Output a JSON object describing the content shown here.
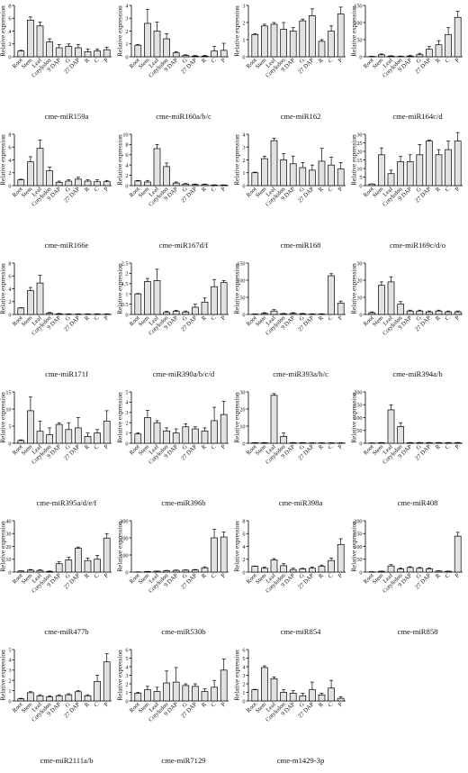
{
  "figure": {
    "categories": [
      "Root",
      "Stem",
      "Leaf",
      "Cotyledon",
      "9 DAP",
      "G",
      "27 DAP",
      "R",
      "C",
      "P"
    ],
    "ylabel": "Relative expression",
    "colors": {
      "bar": "#e2e2e2",
      "stroke": "#000000"
    }
  },
  "chart_data": [
    {
      "type": "bar",
      "title": "cme-miR159a",
      "ylabel": "Relative expression",
      "ylim": [
        0,
        8
      ],
      "yticks": [
        0,
        2,
        4,
        6,
        8
      ],
      "series": [
        {
          "values": [
            0.9,
            5.7,
            4.8,
            2.3,
            1.4,
            1.6,
            1.4,
            0.8,
            0.9,
            1.1
          ],
          "errors": [
            0.1,
            0.5,
            0.6,
            0.5,
            0.5,
            0.4,
            0.5,
            0.4,
            0.3,
            0.4
          ]
        }
      ]
    },
    {
      "type": "bar",
      "title": "cme-miR160a/b/c",
      "ylabel": "Relative expression",
      "ylim": [
        0,
        4
      ],
      "yticks": [
        0,
        1,
        2,
        3,
        4
      ],
      "series": [
        {
          "values": [
            0.9,
            2.6,
            2.0,
            1.4,
            0.3,
            0.1,
            0.05,
            0.05,
            0.45,
            0.5
          ],
          "errors": [
            0.05,
            1.1,
            0.7,
            0.4,
            0.1,
            0.05,
            0.05,
            0.05,
            0.35,
            0.55
          ]
        }
      ]
    },
    {
      "type": "bar",
      "title": "cme-miR162",
      "ylabel": "Relative expression",
      "ylim": [
        0,
        3
      ],
      "yticks": [
        0,
        1,
        2,
        3
      ],
      "series": [
        {
          "values": [
            1.3,
            1.8,
            1.9,
            1.6,
            1.5,
            2.1,
            2.4,
            0.9,
            1.5,
            2.5
          ],
          "errors": [
            0.05,
            0.1,
            0.1,
            0.4,
            0.2,
            0.1,
            0.4,
            0.1,
            0.3,
            0.4
          ]
        }
      ]
    },
    {
      "type": "bar",
      "title": "cme-miR164c/d",
      "ylabel": "Relative expression",
      "ylim": [
        0,
        150
      ],
      "yticks": [
        0,
        50,
        100,
        150
      ],
      "series": [
        {
          "values": [
            1,
            6,
            2,
            1,
            2,
            6,
            22,
            35,
            65,
            115
          ],
          "errors": [
            0.5,
            2,
            1,
            1,
            2,
            4,
            8,
            12,
            20,
            18
          ]
        }
      ]
    },
    {
      "type": "bar",
      "title": "cme-miR166e",
      "ylabel": "Relative expression",
      "ylim": [
        0,
        8
      ],
      "yticks": [
        0,
        2,
        4,
        6,
        8
      ],
      "series": [
        {
          "values": [
            0.9,
            3.7,
            5.8,
            2.3,
            0.5,
            0.7,
            1.0,
            0.7,
            0.6,
            0.6
          ],
          "errors": [
            0.1,
            0.8,
            1.3,
            0.6,
            0.2,
            0.2,
            0.3,
            0.2,
            0.3,
            0.2
          ]
        }
      ]
    },
    {
      "type": "bar",
      "title": "cme-miR167d/f",
      "ylabel": "Relative expression",
      "ylim": [
        0,
        10
      ],
      "yticks": [
        0,
        2,
        4,
        6,
        8,
        10
      ],
      "series": [
        {
          "values": [
            0.9,
            0.7,
            7.2,
            3.7,
            0.5,
            0.3,
            0.2,
            0.2,
            0.1,
            0.1
          ],
          "errors": [
            0.1,
            0.3,
            0.8,
            0.7,
            0.2,
            0.1,
            0.1,
            0.1,
            0.05,
            0.05
          ]
        }
      ]
    },
    {
      "type": "bar",
      "title": "cme-miR168",
      "ylabel": "Relative expression",
      "ylim": [
        0,
        4
      ],
      "yticks": [
        0,
        1,
        2,
        3,
        4
      ],
      "series": [
        {
          "values": [
            1.0,
            2.1,
            3.5,
            2.0,
            1.7,
            1.4,
            1.2,
            1.9,
            1.6,
            1.3
          ],
          "errors": [
            0.05,
            0.2,
            0.2,
            0.5,
            0.6,
            0.4,
            0.4,
            1.0,
            0.6,
            0.5
          ]
        }
      ]
    },
    {
      "type": "bar",
      "title": "cme-miR169c/d/o",
      "ylabel": "Relative expression",
      "ylim": [
        0,
        30
      ],
      "yticks": [
        0,
        5,
        10,
        15,
        20,
        25,
        30
      ],
      "series": [
        {
          "values": [
            0.9,
            18,
            7,
            14,
            14,
            18,
            26,
            18,
            21,
            26
          ],
          "errors": [
            0.1,
            4,
            2,
            3,
            4,
            6,
            0.5,
            3,
            5,
            5
          ]
        }
      ]
    },
    {
      "type": "bar",
      "title": "cme-miR171f",
      "ylabel": "Relative expression",
      "ylim": [
        0,
        8
      ],
      "yticks": [
        0,
        2,
        4,
        6,
        8
      ],
      "series": [
        {
          "values": [
            1.0,
            3.7,
            4.9,
            0.2,
            0.1,
            0.05,
            0.05,
            0.05,
            0.05,
            0.05
          ],
          "errors": [
            0.05,
            0.5,
            1.2,
            0.1,
            0.05,
            0.05,
            0.05,
            0.05,
            0.05,
            0.05
          ]
        }
      ]
    },
    {
      "type": "bar",
      "title": "cme-miR390a/b/c/d",
      "ylabel": "Relative expression",
      "ylim": [
        0,
        2.5
      ],
      "yticks": [
        0.0,
        0.5,
        1.0,
        1.5,
        2.0,
        2.5
      ],
      "series": [
        {
          "values": [
            1.0,
            1.6,
            1.65,
            0.1,
            0.15,
            0.12,
            0.35,
            0.6,
            1.35,
            1.55
          ],
          "errors": [
            0.02,
            0.15,
            0.55,
            0.05,
            0.05,
            0.05,
            0.15,
            0.2,
            0.35,
            0.1
          ]
        }
      ]
    },
    {
      "type": "bar",
      "title": "cme-miR393a/b/c",
      "ylabel": "Relative expression",
      "ylim": [
        0,
        150
      ],
      "yticks": [
        0,
        50,
        100,
        150
      ],
      "series": [
        {
          "values": [
            1,
            3,
            10,
            2,
            3,
            2,
            1,
            1,
            113,
            33
          ],
          "errors": [
            0.5,
            2,
            4,
            1,
            2,
            1,
            1,
            1,
            6,
            6
          ]
        }
      ]
    },
    {
      "type": "bar",
      "title": "cme-miR394a/b",
      "ylabel": "Relative expression",
      "ylim": [
        0,
        30
      ],
      "yticks": [
        0,
        10,
        20,
        30
      ],
      "series": [
        {
          "values": [
            1,
            17,
            19,
            6,
            2,
            2,
            1.5,
            2,
            1.5,
            1.5
          ],
          "errors": [
            0.5,
            2,
            3,
            1.5,
            0.5,
            0.5,
            0.5,
            0.5,
            0.5,
            0.5
          ]
        }
      ]
    },
    {
      "type": "bar",
      "title": "cme-miR395a/d/e/f",
      "ylabel": "Relative expression",
      "ylim": [
        0,
        15
      ],
      "yticks": [
        0,
        5,
        10,
        15
      ],
      "series": [
        {
          "values": [
            0.8,
            9.5,
            3.5,
            2.5,
            5.5,
            4,
            4.5,
            2,
            3,
            6.5
          ],
          "errors": [
            0.2,
            4,
            3,
            2,
            0.5,
            2,
            3,
            1,
            1,
            3
          ]
        }
      ]
    },
    {
      "type": "bar",
      "title": "cme-miR396b",
      "ylabel": "Relative expression",
      "ylim": [
        0,
        5
      ],
      "yticks": [
        0,
        1,
        2,
        3,
        4,
        5
      ],
      "series": [
        {
          "values": [
            0.9,
            2.5,
            2.0,
            1.2,
            1.0,
            1.6,
            1.4,
            1.2,
            2.2,
            2.8
          ],
          "errors": [
            0.1,
            0.7,
            0.2,
            0.3,
            0.4,
            0.3,
            0.2,
            0.3,
            1.3,
            1.3
          ]
        }
      ]
    },
    {
      "type": "bar",
      "title": "cme-miR398a",
      "ylabel": "Relative expression",
      "ylim": [
        0,
        30
      ],
      "yticks": [
        0,
        10,
        20,
        30
      ],
      "series": [
        {
          "values": [
            0.3,
            0.3,
            28,
            4,
            0.3,
            0.3,
            0.2,
            0.2,
            0.2,
            0.2
          ],
          "errors": [
            0.1,
            0.1,
            1,
            2,
            0.1,
            0.1,
            0.1,
            0.1,
            0.1,
            0.1
          ]
        }
      ]
    },
    {
      "type": "bar",
      "title": "cme-miR408",
      "ylabel": "Relative expression",
      "ylim": [
        0,
        200
      ],
      "yticks": [
        0,
        50,
        100,
        150,
        200
      ],
      "series": [
        {
          "values": [
            1,
            2,
            130,
            65,
            2,
            2,
            2,
            2,
            2,
            2
          ],
          "errors": [
            0.5,
            1,
            20,
            15,
            1,
            1,
            1,
            1,
            1,
            1
          ]
        }
      ]
    },
    {
      "type": "bar",
      "title": "cme-miR477b",
      "ylabel": "Relative expression",
      "ylim": [
        0,
        40
      ],
      "yticks": [
        0,
        10,
        20,
        30,
        40
      ],
      "series": [
        {
          "values": [
            0.8,
            1.5,
            1.3,
            0.5,
            6.5,
            9.5,
            18.5,
            9,
            10,
            26.5
          ],
          "errors": [
            0.2,
            0.5,
            0.5,
            0.3,
            1.5,
            2,
            1,
            2,
            3,
            3.5
          ]
        }
      ]
    },
    {
      "type": "bar",
      "title": "cme-miR530b",
      "ylabel": "Relative expression",
      "ylim": [
        0,
        300
      ],
      "yticks": [
        0,
        100,
        200,
        300
      ],
      "series": [
        {
          "values": [
            1,
            3,
            5,
            8,
            10,
            11,
            12,
            25,
            200,
            205
          ],
          "errors": [
            0.5,
            1,
            1,
            2,
            2,
            2,
            3,
            6,
            50,
            30
          ]
        }
      ]
    },
    {
      "type": "bar",
      "title": "cme-miR854",
      "ylabel": "Relative expression",
      "ylim": [
        0,
        8
      ],
      "yticks": [
        0,
        2,
        4,
        6,
        8
      ],
      "series": [
        {
          "values": [
            0.9,
            0.6,
            1.9,
            1.0,
            0.4,
            0.5,
            0.6,
            0.9,
            1.8,
            4.3
          ],
          "errors": [
            0.05,
            0.2,
            0.2,
            0.3,
            0.2,
            0.1,
            0.2,
            0.2,
            0.4,
            0.9
          ]
        }
      ]
    },
    {
      "type": "bar",
      "title": "cme-miR858",
      "ylabel": "Relative expression",
      "ylim": [
        0,
        200
      ],
      "yticks": [
        0,
        50,
        100,
        150,
        200
      ],
      "series": [
        {
          "values": [
            1,
            3,
            24,
            12,
            18,
            15,
            13,
            4,
            3,
            140
          ],
          "errors": [
            0.5,
            1,
            5,
            4,
            3,
            3,
            3,
            1,
            1,
            15
          ]
        }
      ]
    },
    {
      "type": "bar",
      "title": "cme-miR2111a/b",
      "ylabel": "Relative expression",
      "ylim": [
        0,
        5
      ],
      "yticks": [
        0,
        1,
        2,
        3,
        4,
        5
      ],
      "series": [
        {
          "values": [
            0.2,
            0.8,
            0.5,
            0.4,
            0.5,
            0.6,
            0.9,
            0.5,
            1.9,
            3.8
          ],
          "errors": [
            0.05,
            0.1,
            0.1,
            0.1,
            0.1,
            0.1,
            0.1,
            0.1,
            0.6,
            0.8
          ]
        }
      ]
    },
    {
      "type": "bar",
      "title": "cme-miR7129",
      "ylabel": "Relative expression",
      "ylim": [
        0,
        6
      ],
      "yticks": [
        0,
        1,
        2,
        3,
        4,
        5,
        6
      ],
      "series": [
        {
          "values": [
            0.9,
            1.3,
            1.1,
            2.1,
            2.2,
            1.8,
            1.7,
            1.1,
            1.6,
            3.6
          ],
          "errors": [
            0.1,
            0.4,
            0.5,
            1.4,
            1.7,
            0.2,
            0.3,
            0.3,
            0.8,
            1.3
          ]
        }
      ]
    },
    {
      "type": "bar",
      "title": "cme-m1429-3p",
      "ylabel": "Relative expression",
      "ylim": [
        0,
        6
      ],
      "yticks": [
        0,
        1,
        2,
        3,
        4,
        5,
        6
      ],
      "series": [
        {
          "values": [
            1.3,
            3.9,
            2.6,
            1.0,
            0.9,
            0.6,
            1.3,
            0.7,
            1.5,
            0.3
          ],
          "errors": [
            0.05,
            0.2,
            0.2,
            0.3,
            0.3,
            0.3,
            0.9,
            0.2,
            0.9,
            0.2
          ]
        }
      ]
    }
  ]
}
